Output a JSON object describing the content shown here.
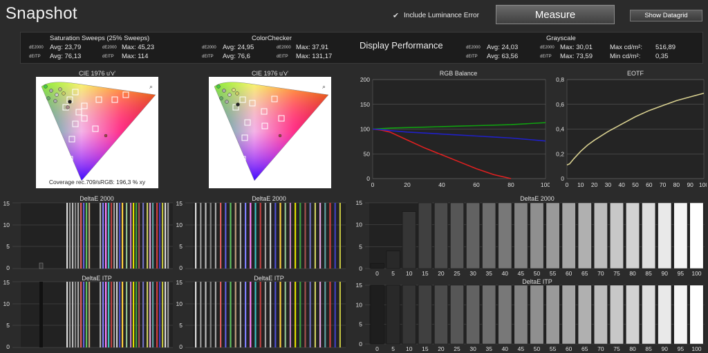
{
  "app": {
    "title": "Snapshot"
  },
  "toolbar": {
    "luminance_label": "Include Luminance Error",
    "luminance_check": "✔",
    "measure_label": "Measure",
    "datagrid_label": "Show Datagrid"
  },
  "summary": {
    "saturation": {
      "title": "Saturation Sweeps (25% Sweeps)",
      "de2000_tag": "dE2000",
      "ditp_tag": "dEITP",
      "avg_de2000": "Avg: 23,79",
      "max_de2000": "Max: 45,23",
      "avg_ditp": "Avg: 76,13",
      "max_ditp": "Max: 114"
    },
    "colorchecker": {
      "title": "ColorChecker",
      "de2000_tag": "dE2000",
      "ditp_tag": "dEITP",
      "avg_de2000": "Avg: 24,95",
      "max_de2000": "Max: 37,91",
      "avg_ditp": "Avg: 76,6",
      "max_ditp": "Max: 131,17"
    },
    "display_performance": "Display Performance",
    "grayscale": {
      "title": "Grayscale",
      "de2000_tag": "dE2000",
      "ditp_tag": "dEITP",
      "avg_de2000": "Avg: 24,03",
      "max_de2000": "Max: 30,01",
      "avg_ditp": "Avg: 63,56",
      "max_ditp": "Max: 73,59",
      "max_cd_label": "Max cd/m²:",
      "max_cd": "516,89",
      "min_cd_label": "Min cd/m²:",
      "min_cd": "0,35"
    }
  },
  "cie1": {
    "title": "CIE 1976 u'v'",
    "coverage": "Coverage rec.709/sRGB:  196,3 % xy"
  },
  "cie2": {
    "title": "CIE 1976 u'v'"
  },
  "delta_titles": {
    "sat_de2000": "DeltaE 2000",
    "sat_ditp": "DeltaE ITP",
    "cc_de2000": "DeltaE 2000",
    "cc_ditp": "DeltaE ITP",
    "gs_de2000": "DeltaE 2000",
    "gs_ditp": "DeltaE ITP"
  },
  "colors": {
    "red": "#e02020",
    "green": "#10a010",
    "blue": "#2020c8",
    "eotf": "#d8d090"
  },
  "chart_data": [
    {
      "type": "line",
      "title": "RGB Balance",
      "xlim": [
        0,
        100
      ],
      "ylim": [
        0,
        200
      ],
      "xticks": [
        0,
        20,
        40,
        60,
        80,
        100
      ],
      "yticks": [
        0,
        50,
        100,
        150,
        200
      ],
      "x": [
        0,
        5,
        10,
        20,
        30,
        40,
        50,
        60,
        70,
        80,
        90,
        100
      ],
      "series": [
        {
          "name": "",
          "color": "red",
          "values": [
            100,
            98,
            94,
            78,
            62,
            48,
            34,
            20,
            8,
            0,
            null,
            null
          ]
        },
        {
          "name": "",
          "color": "green",
          "values": [
            100,
            101,
            102,
            103,
            104,
            105,
            106,
            107,
            108,
            109,
            111,
            113
          ]
        },
        {
          "name": "",
          "color": "blue",
          "values": [
            100,
            99,
            97,
            94,
            92,
            90,
            88,
            86,
            84,
            82,
            79,
            76
          ]
        }
      ]
    },
    {
      "type": "line",
      "title": "EOTF",
      "xlim": [
        0,
        100
      ],
      "ylim": [
        0,
        0.8
      ],
      "xticks": [
        0,
        10,
        20,
        30,
        40,
        50,
        60,
        70,
        80,
        90,
        100
      ],
      "yticks": [
        "0",
        "0,2",
        "0,4",
        "0,6",
        "0,8"
      ],
      "x": [
        0,
        2,
        5,
        10,
        15,
        20,
        30,
        40,
        50,
        60,
        70,
        80,
        90,
        100
      ],
      "series": [
        {
          "name": "",
          "color": "eotf",
          "values": [
            0.11,
            0.12,
            0.16,
            0.22,
            0.27,
            0.31,
            0.38,
            0.44,
            0.5,
            0.55,
            0.59,
            0.63,
            0.66,
            0.69
          ]
        }
      ]
    },
    {
      "type": "bar",
      "title": "DeltaE 2000",
      "categories": [
        "0",
        "5",
        "10",
        "15",
        "20",
        "25",
        "30",
        "35",
        "40",
        "45",
        "50",
        "55",
        "60",
        "65",
        "70",
        "75",
        "80",
        "85",
        "90",
        "95",
        "100"
      ],
      "values": [
        1.2,
        4,
        13,
        15,
        15,
        15,
        15,
        15,
        15,
        15,
        15,
        15,
        15,
        15,
        15,
        15,
        15,
        15,
        15,
        15,
        15
      ],
      "ylim": [
        0,
        15
      ],
      "yticks": [
        0,
        5,
        10,
        15
      ]
    },
    {
      "type": "bar",
      "title": "DeltaE ITP",
      "categories": [
        "0",
        "5",
        "10",
        "15",
        "20",
        "25",
        "30",
        "35",
        "40",
        "45",
        "50",
        "55",
        "60",
        "65",
        "70",
        "75",
        "80",
        "85",
        "90",
        "95",
        "100"
      ],
      "values": [
        15,
        15,
        15,
        15,
        15,
        15,
        15,
        15,
        15,
        15,
        15,
        15,
        15,
        15,
        15,
        15,
        15,
        15,
        15,
        15,
        15
      ],
      "ylim": [
        0,
        15
      ],
      "yticks": [
        0,
        5,
        10,
        15
      ]
    }
  ]
}
